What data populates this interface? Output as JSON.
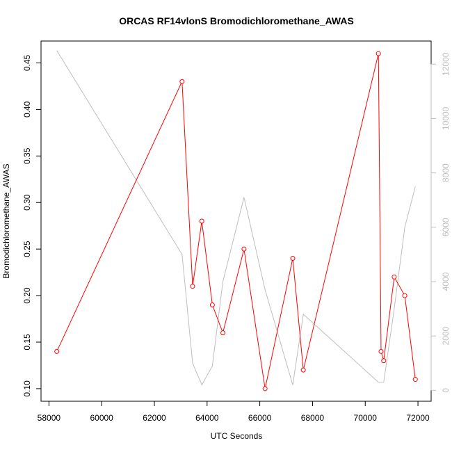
{
  "chart_data": {
    "type": "line",
    "title": "ORCAS RF14vlonS Bromodichloromethane_AWAS",
    "xlabel": "UTC Seconds",
    "ylabel": "Bromodichloromethane_AWAS",
    "xlim": [
      57700,
      72500
    ],
    "ylim": [
      0.0865,
      0.4735
    ],
    "y2lim": [
      -400,
      12850
    ],
    "x_ticks": [
      58000,
      60000,
      62000,
      64000,
      66000,
      68000,
      70000,
      72000
    ],
    "y_ticks": [
      0.1,
      0.15,
      0.2,
      0.25,
      0.3,
      0.35,
      0.4,
      0.45
    ],
    "y2_ticks": [
      0,
      2000,
      4000,
      6000,
      8000,
      10000,
      12000
    ],
    "colors": {
      "primary": "#ff0000",
      "secondary": "#bebebe",
      "axis": "#000000"
    },
    "series": [
      {
        "axis": "left",
        "color": "#ff0000",
        "x": [
          58300,
          63050,
          63450,
          63800,
          64200,
          64600,
          65400,
          66200,
          67250,
          67650,
          70500,
          70600,
          70700,
          71100,
          71500,
          71900
        ],
        "values": [
          0.14,
          0.43,
          0.21,
          0.28,
          0.19,
          0.16,
          0.25,
          0.1,
          0.24,
          0.12,
          0.46,
          0.14,
          0.13,
          0.22,
          0.2,
          0.11
        ]
      },
      {
        "axis": "right",
        "color": "#bebebe",
        "x": [
          58300,
          63050,
          63450,
          63800,
          64200,
          64600,
          65400,
          66200,
          67250,
          67650,
          70500,
          70600,
          70700,
          71100,
          71500,
          71900
        ],
        "values": [
          12500,
          5000,
          1000,
          200,
          900,
          4000,
          7100,
          3700,
          200,
          2800,
          300,
          300,
          300,
          3000,
          6000,
          7500
        ]
      }
    ]
  }
}
